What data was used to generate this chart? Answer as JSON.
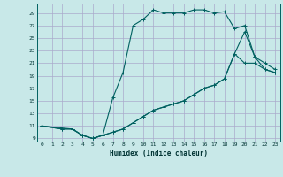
{
  "xlabel": "Humidex (Indice chaleur)",
  "bg_color": "#c8e8e8",
  "grid_color": "#aaaacc",
  "line_color": "#006060",
  "xlim": [
    -0.5,
    23.5
  ],
  "ylim": [
    8.5,
    30.5
  ],
  "xticks": [
    0,
    1,
    2,
    3,
    4,
    5,
    6,
    7,
    8,
    9,
    10,
    11,
    12,
    13,
    14,
    15,
    16,
    17,
    18,
    19,
    20,
    21,
    22,
    23
  ],
  "yticks": [
    9,
    11,
    13,
    15,
    17,
    19,
    21,
    23,
    25,
    27,
    29
  ],
  "line1_x": [
    0,
    2,
    3,
    4,
    5,
    6,
    7,
    8,
    9,
    10,
    11,
    12,
    13,
    14,
    15,
    16,
    17,
    18,
    19,
    20,
    21,
    22,
    23
  ],
  "line1_y": [
    11,
    10.5,
    10.5,
    9.5,
    9.0,
    9.5,
    15.5,
    19.5,
    27,
    28,
    29.5,
    29,
    29,
    29,
    29.5,
    29.5,
    29,
    29.2,
    26.5,
    27,
    22,
    21,
    20
  ],
  "line2_x": [
    0,
    2,
    3,
    4,
    5,
    6,
    7,
    8,
    9,
    10,
    11,
    12,
    13,
    14,
    15,
    16,
    17,
    18,
    19,
    20,
    21,
    22,
    23
  ],
  "line2_y": [
    11,
    10.5,
    10.5,
    9.5,
    9.0,
    9.5,
    10.0,
    10.5,
    11.5,
    12.5,
    13.5,
    14,
    14.5,
    15,
    16,
    17,
    17.5,
    18.5,
    22.5,
    26,
    22,
    20,
    19.5
  ],
  "line3_x": [
    0,
    3,
    4,
    5,
    6,
    7,
    8,
    9,
    10,
    11,
    12,
    13,
    14,
    15,
    16,
    17,
    18,
    19,
    20,
    21,
    22,
    23
  ],
  "line3_y": [
    11,
    10.5,
    9.5,
    9.0,
    9.5,
    10.0,
    10.5,
    11.5,
    12.5,
    13.5,
    14,
    14.5,
    15,
    16,
    17,
    17.5,
    18.5,
    22.5,
    21,
    21,
    20,
    19.5
  ]
}
